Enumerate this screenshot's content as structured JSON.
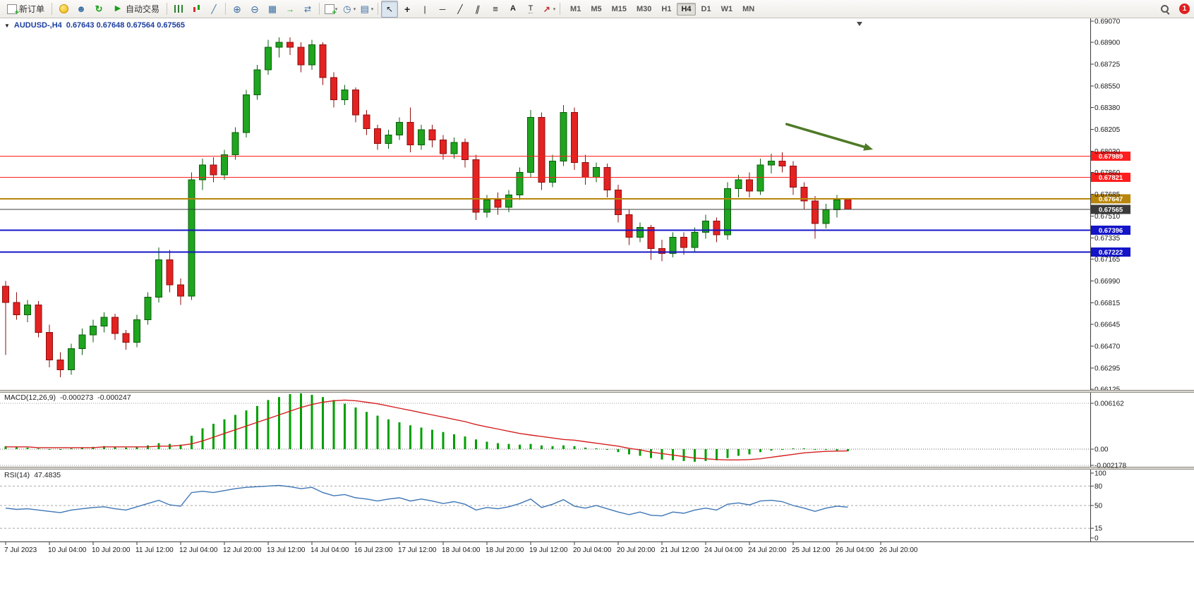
{
  "toolbar": {
    "new_order_label": "新订单",
    "auto_trading_label": "自动交易",
    "timeframes": [
      "M1",
      "M5",
      "M15",
      "M30",
      "H1",
      "H4",
      "D1",
      "W1",
      "MN"
    ],
    "active_timeframe": "H4",
    "notification_badge": "1"
  },
  "chart": {
    "symbol_label": "AUDUSD-,H4",
    "ohlc_label": "0.67643 0.67648 0.67564 0.67565"
  },
  "indicators": {
    "macd_label": "MACD(12,26,9)",
    "macd_value_1": "-0.000273",
    "macd_value_2": "-0.000247",
    "rsi_label": "RSI(14)",
    "rsi_value": "47.4835"
  },
  "chart_data": {
    "type": "candlestick",
    "symbol": "AUDUSD-",
    "timeframe": "H4",
    "ohlc_current": [
      0.67643,
      0.67648,
      0.67564,
      0.67565
    ],
    "y_axis": {
      "min": 0.66125,
      "max": 0.6907,
      "ticks": [
        "0.69070",
        "0.68900",
        "0.68725",
        "0.68550",
        "0.68380",
        "0.68205",
        "0.68030",
        "0.67860",
        "0.67685",
        "0.67510",
        "0.67335",
        "0.67165",
        "0.66990",
        "0.66815",
        "0.66645",
        "0.66470",
        "0.66295",
        "0.66125"
      ]
    },
    "x_axis": {
      "labels": [
        "7 Jul 2023",
        "10 Jul 04:00",
        "10 Jul 20:00",
        "11 Jul 12:00",
        "12 Jul 04:00",
        "12 Jul 20:00",
        "13 Jul 12:00",
        "14 Jul 04:00",
        "16 Jul 23:00",
        "17 Jul 12:00",
        "18 Jul 04:00",
        "18 Jul 20:00",
        "19 Jul 12:00",
        "20 Jul 04:00",
        "20 Jul 20:00",
        "21 Jul 12:00",
        "24 Jul 04:00",
        "24 Jul 20:00",
        "25 Jul 12:00",
        "26 Jul 04:00",
        "26 Jul 20:00"
      ],
      "label_every_n_candles": 4
    },
    "candles": [
      [
        0.6695,
        0.6699,
        0.664,
        0.6682
      ],
      [
        0.6682,
        0.669,
        0.6668,
        0.6672
      ],
      [
        0.6672,
        0.6684,
        0.6666,
        0.668
      ],
      [
        0.668,
        0.6683,
        0.6654,
        0.6658
      ],
      [
        0.6658,
        0.6664,
        0.663,
        0.6636
      ],
      [
        0.6636,
        0.6642,
        0.6622,
        0.6628
      ],
      [
        0.6628,
        0.6649,
        0.6624,
        0.6645
      ],
      [
        0.6645,
        0.6661,
        0.664,
        0.6656
      ],
      [
        0.6656,
        0.6668,
        0.665,
        0.6663
      ],
      [
        0.6663,
        0.6674,
        0.6658,
        0.667
      ],
      [
        0.667,
        0.6673,
        0.6652,
        0.6657
      ],
      [
        0.6657,
        0.666,
        0.6644,
        0.665
      ],
      [
        0.665,
        0.6672,
        0.6646,
        0.6668
      ],
      [
        0.6668,
        0.669,
        0.6664,
        0.6686
      ],
      [
        0.6686,
        0.6726,
        0.6682,
        0.6716
      ],
      [
        0.6716,
        0.6724,
        0.669,
        0.6696
      ],
      [
        0.6696,
        0.6701,
        0.668,
        0.6687
      ],
      [
        0.6687,
        0.6786,
        0.6684,
        0.678
      ],
      [
        0.678,
        0.6797,
        0.6772,
        0.6792
      ],
      [
        0.6792,
        0.6798,
        0.6778,
        0.6784
      ],
      [
        0.6784,
        0.6804,
        0.678,
        0.68
      ],
      [
        0.68,
        0.6822,
        0.6796,
        0.6818
      ],
      [
        0.6818,
        0.6852,
        0.6814,
        0.6848
      ],
      [
        0.6848,
        0.6872,
        0.6844,
        0.6868
      ],
      [
        0.6868,
        0.6892,
        0.6864,
        0.6886
      ],
      [
        0.6886,
        0.6894,
        0.6878,
        0.689
      ],
      [
        0.689,
        0.6894,
        0.688,
        0.6886
      ],
      [
        0.6886,
        0.689,
        0.6866,
        0.6872
      ],
      [
        0.6872,
        0.6892,
        0.6868,
        0.6888
      ],
      [
        0.6888,
        0.689,
        0.6856,
        0.6862
      ],
      [
        0.6862,
        0.6866,
        0.6838,
        0.6844
      ],
      [
        0.6844,
        0.6856,
        0.684,
        0.6852
      ],
      [
        0.6852,
        0.6854,
        0.6826,
        0.6832
      ],
      [
        0.6832,
        0.6836,
        0.6816,
        0.6821
      ],
      [
        0.6821,
        0.6824,
        0.6804,
        0.6809
      ],
      [
        0.6809,
        0.682,
        0.6805,
        0.6816
      ],
      [
        0.6816,
        0.683,
        0.6812,
        0.6826
      ],
      [
        0.6826,
        0.6838,
        0.6802,
        0.6808
      ],
      [
        0.6808,
        0.6824,
        0.6804,
        0.682
      ],
      [
        0.682,
        0.6824,
        0.6806,
        0.6812
      ],
      [
        0.6812,
        0.6816,
        0.6796,
        0.6801
      ],
      [
        0.6801,
        0.6814,
        0.6797,
        0.681
      ],
      [
        0.681,
        0.6813,
        0.679,
        0.6796
      ],
      [
        0.6796,
        0.68,
        0.6748,
        0.6754
      ],
      [
        0.6754,
        0.6768,
        0.675,
        0.6764
      ],
      [
        0.6764,
        0.677,
        0.6752,
        0.6758
      ],
      [
        0.6758,
        0.6772,
        0.6754,
        0.6768
      ],
      [
        0.6768,
        0.679,
        0.6764,
        0.6786
      ],
      [
        0.6786,
        0.6836,
        0.6782,
        0.683
      ],
      [
        0.683,
        0.6834,
        0.6772,
        0.6778
      ],
      [
        0.6778,
        0.68,
        0.6774,
        0.6795
      ],
      [
        0.6795,
        0.684,
        0.6791,
        0.6834
      ],
      [
        0.6834,
        0.6838,
        0.6788,
        0.6794
      ],
      [
        0.6794,
        0.68,
        0.6776,
        0.6782
      ],
      [
        0.6782,
        0.6794,
        0.6778,
        0.679
      ],
      [
        0.679,
        0.6793,
        0.6766,
        0.6772
      ],
      [
        0.6772,
        0.6776,
        0.6746,
        0.6752
      ],
      [
        0.6752,
        0.6756,
        0.6728,
        0.6734
      ],
      [
        0.6734,
        0.6746,
        0.673,
        0.6742
      ],
      [
        0.6742,
        0.6744,
        0.6716,
        0.6725
      ],
      [
        0.6725,
        0.6732,
        0.6715,
        0.6721
      ],
      [
        0.6721,
        0.6738,
        0.6718,
        0.6734
      ],
      [
        0.6734,
        0.6738,
        0.672,
        0.6726
      ],
      [
        0.6726,
        0.6742,
        0.6722,
        0.6738
      ],
      [
        0.6738,
        0.6752,
        0.6733,
        0.6747
      ],
      [
        0.6747,
        0.675,
        0.673,
        0.6736
      ],
      [
        0.6736,
        0.6778,
        0.6732,
        0.6773
      ],
      [
        0.6773,
        0.6784,
        0.6766,
        0.678
      ],
      [
        0.678,
        0.6786,
        0.6766,
        0.6771
      ],
      [
        0.6771,
        0.6797,
        0.6768,
        0.6792
      ],
      [
        0.6792,
        0.6801,
        0.6785,
        0.6795
      ],
      [
        0.6795,
        0.6802,
        0.6786,
        0.6791
      ],
      [
        0.6791,
        0.6795,
        0.6768,
        0.6774
      ],
      [
        0.6774,
        0.6778,
        0.6756,
        0.6763
      ],
      [
        0.6763,
        0.6767,
        0.6733,
        0.6745
      ],
      [
        0.6745,
        0.6761,
        0.6741,
        0.6756
      ],
      [
        0.6756,
        0.6768,
        0.675,
        0.6764
      ],
      [
        0.67643,
        0.67648,
        0.67564,
        0.67565
      ]
    ],
    "horizontal_lines": [
      {
        "price": 0.67989,
        "label": "0.67989",
        "color": "#FF1E1E",
        "width": 1
      },
      {
        "price": 0.67821,
        "label": "0.67821",
        "color": "#FF1E1E",
        "width": 1
      },
      {
        "price": 0.67647,
        "label": "0.67647",
        "color": "#B8860B",
        "width": 2
      },
      {
        "price": 0.67565,
        "label": "0.67565",
        "color": "#3B3B3B",
        "width": 1
      },
      {
        "price": 0.67396,
        "label": "0.67396",
        "color": "#1414C8",
        "width": 2
      },
      {
        "price": 0.67222,
        "label": "0.67222",
        "color": "#1414C8",
        "width": 2
      }
    ],
    "arrow_annotation": {
      "x1_candle": 71.4,
      "price1": 0.68246,
      "x2_candle": 79.3,
      "price2": 0.68043,
      "color": "#4E7A27"
    },
    "macd": {
      "params": [
        12,
        26,
        9
      ],
      "axis": {
        "upper": 0.006162,
        "zero": 0.0,
        "lower": -0.002178
      },
      "axis_labels": [
        "0.006162",
        "0.00",
        "-0.002178"
      ],
      "histogram": [
        0.0004,
        0.0003,
        0.0002,
        0.0001,
        0.0,
        -0.0001,
        0.0001,
        0.0002,
        0.0003,
        0.0004,
        0.0003,
        0.0002,
        0.0003,
        0.0005,
        0.0008,
        0.0007,
        0.0006,
        0.0018,
        0.0028,
        0.0034,
        0.004,
        0.0046,
        0.0052,
        0.0058,
        0.0066,
        0.007,
        0.0074,
        0.0075,
        0.0073,
        0.007,
        0.0066,
        0.0061,
        0.0056,
        0.005,
        0.0045,
        0.004,
        0.0036,
        0.0032,
        0.0029,
        0.0026,
        0.0023,
        0.002,
        0.0017,
        0.0013,
        0.001,
        0.0008,
        0.0007,
        0.0006,
        0.0007,
        0.0005,
        0.0004,
        0.0005,
        0.0004,
        0.0002,
        0.0001,
        -0.0001,
        -0.0004,
        -0.0007,
        -0.0009,
        -0.0012,
        -0.0014,
        -0.0015,
        -0.0016,
        -0.0017,
        -0.0016,
        -0.0015,
        -0.0012,
        -0.0009,
        -0.0007,
        -0.0004,
        -0.0002,
        0.0,
        0.0001,
        0.0001,
        0.0,
        -0.0001,
        -0.0002,
        -0.000273
      ],
      "signal": [
        0.0003,
        0.0003,
        0.0003,
        0.0002,
        0.0002,
        0.0002,
        0.0002,
        0.0002,
        0.0002,
        0.0003,
        0.0003,
        0.0003,
        0.0003,
        0.0003,
        0.0004,
        0.0004,
        0.0005,
        0.0007,
        0.0011,
        0.0016,
        0.0021,
        0.0026,
        0.0031,
        0.0036,
        0.0041,
        0.0046,
        0.0051,
        0.0056,
        0.006,
        0.0063,
        0.0065,
        0.0066,
        0.0065,
        0.0063,
        0.0061,
        0.0058,
        0.0055,
        0.0052,
        0.0049,
        0.0046,
        0.0043,
        0.004,
        0.0037,
        0.0033,
        0.003,
        0.0027,
        0.0024,
        0.0021,
        0.0019,
        0.0017,
        0.0015,
        0.0013,
        0.0012,
        0.001,
        0.0008,
        0.0006,
        0.0004,
        0.0001,
        -0.0001,
        -0.0004,
        -0.0006,
        -0.0008,
        -0.001,
        -0.0012,
        -0.0013,
        -0.0014,
        -0.00145,
        -0.00145,
        -0.0014,
        -0.0013,
        -0.0011,
        -0.0009,
        -0.0007,
        -0.0005,
        -0.0004,
        -0.0003,
        -0.00027,
        -0.000247
      ]
    },
    "rsi": {
      "period": 14,
      "levels": [
        100,
        80,
        50,
        15,
        0
      ],
      "level_labels": [
        "100",
        "80",
        "50",
        "15",
        "0"
      ],
      "dashed_levels": [
        80,
        50,
        15
      ],
      "values": [
        46,
        44,
        45,
        43,
        41,
        39,
        43,
        45,
        47,
        48,
        45,
        43,
        48,
        53,
        58,
        51,
        49,
        70,
        72,
        70,
        73,
        76,
        78,
        79,
        80,
        81,
        79,
        76,
        78,
        70,
        65,
        67,
        62,
        60,
        57,
        60,
        62,
        57,
        60,
        57,
        53,
        56,
        52,
        43,
        47,
        45,
        48,
        53,
        60,
        47,
        52,
        59,
        49,
        46,
        50,
        45,
        40,
        36,
        40,
        35,
        34,
        40,
        38,
        43,
        46,
        43,
        52,
        54,
        51,
        57,
        58,
        56,
        50,
        46,
        41,
        46,
        49,
        47.4835
      ]
    },
    "colors": {
      "up": "#1FA51F",
      "up_stroke": "#0B5D0B",
      "down": "#E32222",
      "down_stroke": "#8F0E0E",
      "macd_histogram": "#00A000",
      "macd_signal": "#D42020",
      "rsi": "#3E76B5",
      "background": "#FFFFFF",
      "axis_text": "#1A1A1A"
    }
  }
}
